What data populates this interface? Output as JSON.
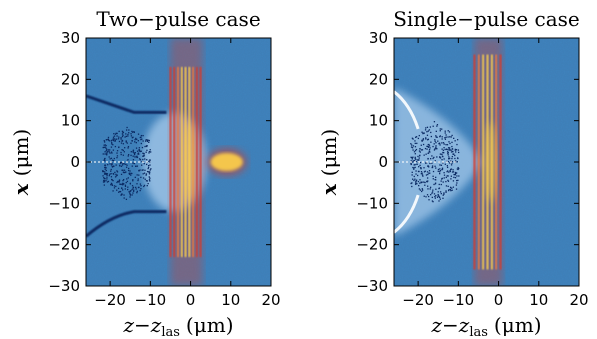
{
  "figure": {
    "colors": {
      "background": "#3f7fb8",
      "background_light": "#9cc3e6",
      "electrons_dark": "#0b2a63",
      "laser_core": "#ffd24a",
      "laser_mid": "#f07a3b",
      "laser_edge": "#d63a2a",
      "frame": "#000000"
    }
  },
  "chart_data": [
    {
      "type": "heatmap",
      "title": "Two−pulse case",
      "xlabel_main": "z−z",
      "xlabel_sub": "las",
      "xlabel_unit": "(μm)",
      "ylabel": "x (μm)",
      "xlim": [
        -26,
        20
      ],
      "ylim": [
        -30,
        30
      ],
      "x_ticks": [
        -20,
        -10,
        0,
        10,
        20
      ],
      "y_ticks": [
        -30,
        -20,
        -10,
        0,
        10,
        20,
        30
      ],
      "features": {
        "laser_fronts_z": [
          -2,
          0,
          1
        ],
        "second_pulse_z": [
          5,
          13
        ],
        "bubble_wall_upper_x": 12,
        "bubble_wall_lower_x": -12,
        "electron_bunch_z": [
          -22,
          -10
        ]
      }
    },
    {
      "type": "heatmap",
      "title": "Single−pulse case",
      "xlabel_main": "z−z",
      "xlabel_sub": "las",
      "xlabel_unit": "(μm)",
      "ylabel": "x (μm)",
      "xlim": [
        -26,
        20
      ],
      "ylim": [
        -30,
        30
      ],
      "x_ticks": [
        -20,
        -10,
        0,
        10,
        20
      ],
      "y_ticks": [
        -30,
        -20,
        -10,
        0,
        10,
        20,
        30
      ],
      "features": {
        "laser_fronts_z": [
          -3,
          -1
        ],
        "electron_bunch_z": [
          -22,
          -10
        ]
      }
    }
  ]
}
